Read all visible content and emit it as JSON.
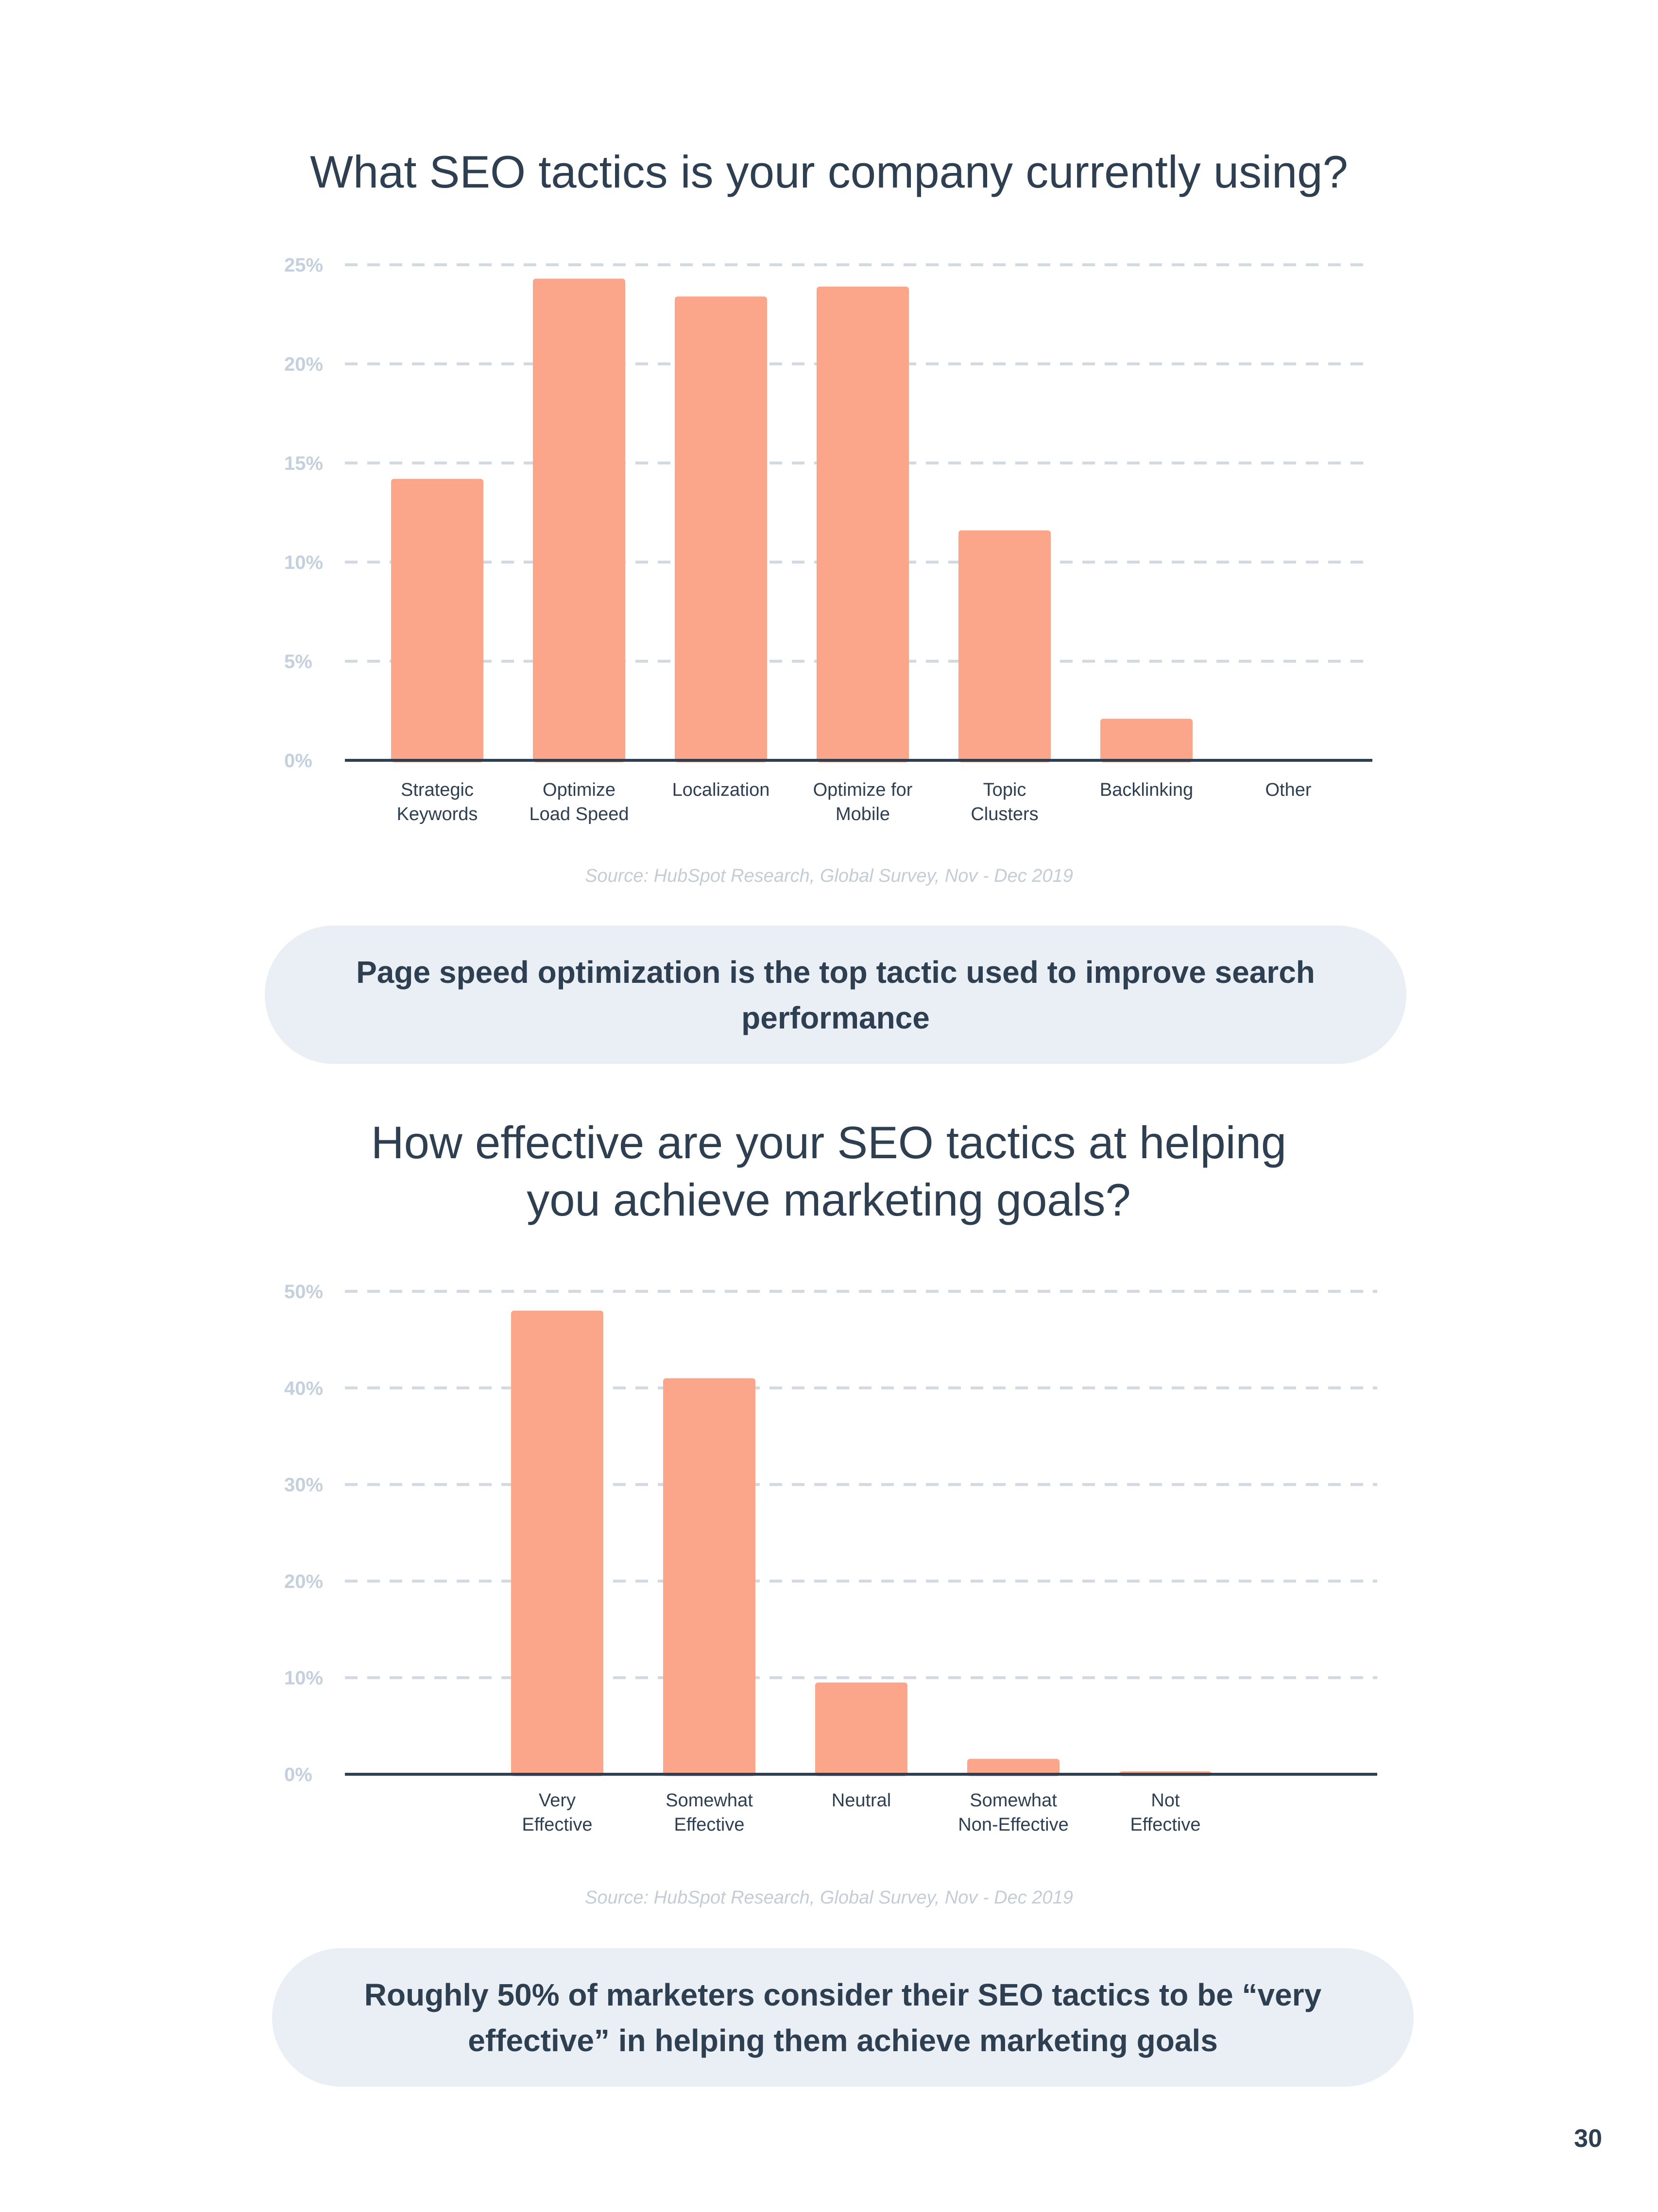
{
  "chart_data": [
    {
      "type": "bar",
      "title": "What SEO tactics is your company currently using?",
      "categories": [
        [
          "Strategic",
          "Keywords"
        ],
        [
          "Optimize",
          "Load Speed"
        ],
        [
          "Localization"
        ],
        [
          "Optimize for",
          "Mobile"
        ],
        [
          "Topic",
          "Clusters"
        ],
        [
          "Backlinking"
        ],
        [
          "Other"
        ]
      ],
      "values": [
        14.2,
        24.3,
        23.4,
        23.9,
        11.6,
        2.1,
        0
      ],
      "ylim": [
        0,
        25
      ],
      "yticks": [
        "0%",
        "5%",
        "10%",
        "15%",
        "20%",
        "25%"
      ],
      "ytick_values": [
        0,
        5,
        10,
        15,
        20,
        25
      ],
      "grid": true,
      "bar_color": "#fba68b",
      "source": "Source: HubSpot Research, Global Survey, Nov - Dec 2019",
      "callout": "Page speed optimization is the top tactic used to improve search performance"
    },
    {
      "type": "bar",
      "title": "How effective are your SEO tactics at helping you achieve marketing goals?",
      "categories": [
        [
          "Very",
          "Effective"
        ],
        [
          "Somewhat",
          "Effective"
        ],
        [
          "Neutral"
        ],
        [
          "Somewhat",
          "Non-Effective"
        ],
        [
          "Not",
          "Effective"
        ]
      ],
      "values": [
        48,
        41,
        9.5,
        1.6,
        0.3
      ],
      "ylim": [
        0,
        50
      ],
      "yticks": [
        "0%",
        "10%",
        "20%",
        "30%",
        "40%",
        "50%"
      ],
      "ytick_values": [
        0,
        10,
        20,
        30,
        40,
        50
      ],
      "grid": true,
      "bar_color": "#fba68b",
      "source": "Source: HubSpot Research, Global Survey, Nov - Dec 2019",
      "callout": "Roughly 50% of marketers consider their SEO tactics to be “very effective” in helping them achieve marketing goals"
    }
  ],
  "page_number": "30",
  "colors": {
    "bar": "#fba68b",
    "axis": "#2e3f51",
    "grid": "#d3d9e1",
    "tick_label": "#c5d0de",
    "callout_bg": "#eaeff5",
    "text": "#2e3f51"
  }
}
